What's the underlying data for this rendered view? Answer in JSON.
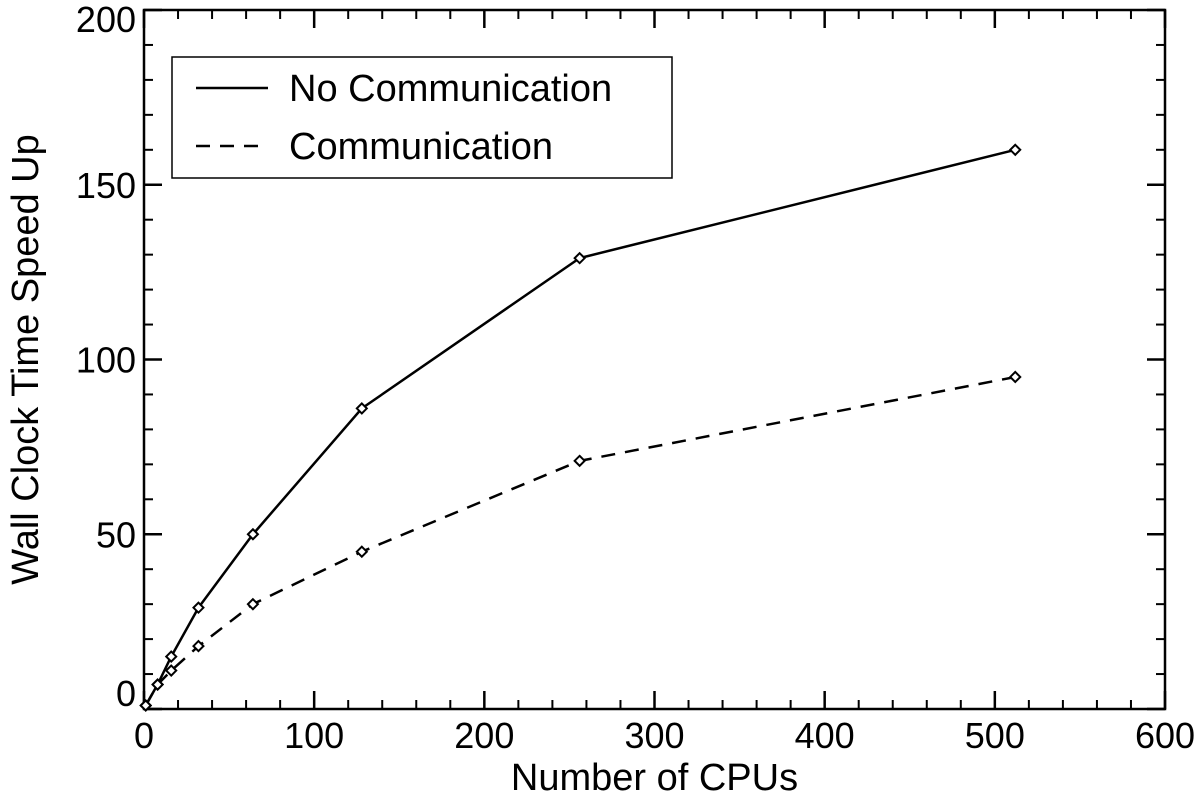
{
  "chart_data": {
    "type": "line",
    "title": "",
    "xlabel": "Number of CPUs",
    "ylabel": "Wall Clock Time Speed Up",
    "xlim": [
      0,
      600
    ],
    "ylim": [
      0,
      200
    ],
    "xticks": [
      0,
      100,
      200,
      300,
      400,
      500,
      600
    ],
    "yticks": [
      0,
      50,
      100,
      150,
      200
    ],
    "xtick_labels": [
      "0",
      "100",
      "200",
      "300",
      "400",
      "500",
      "600"
    ],
    "ytick_labels": [
      "0",
      "50",
      "100",
      "150",
      "200"
    ],
    "x_minor_step": 20,
    "y_minor_step": 10,
    "grid": false,
    "legend_position": "top-left",
    "marker": "diamond",
    "series": [
      {
        "name": "No Communication",
        "line_style": "solid",
        "color": "#000000",
        "x": [
          1,
          8,
          16,
          32,
          64,
          128,
          256,
          512
        ],
        "y": [
          1,
          7,
          15,
          29,
          50,
          86,
          129,
          160
        ]
      },
      {
        "name": "Communication",
        "line_style": "dashed",
        "color": "#000000",
        "x": [
          1,
          8,
          16,
          32,
          64,
          128,
          256,
          512
        ],
        "y": [
          1,
          7,
          11,
          18,
          30,
          45,
          71,
          95
        ]
      }
    ]
  }
}
